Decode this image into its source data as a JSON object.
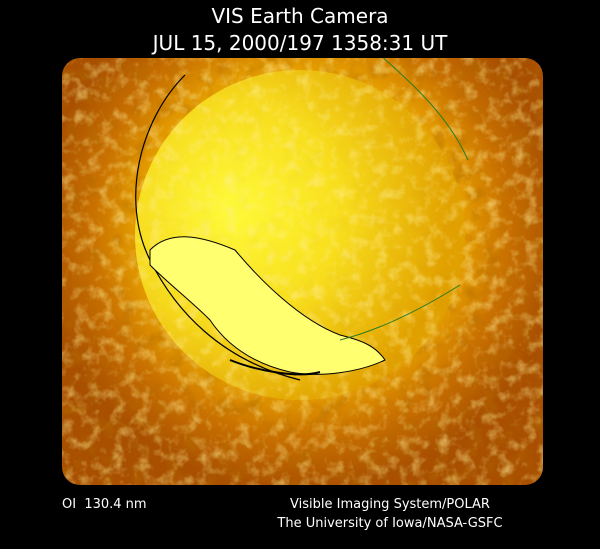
{
  "header": {
    "title": "VIS Earth Camera",
    "timestamp": "JUL 15, 2000/197 1358:31 UT"
  },
  "footer": {
    "filter": "OI  130.4 nm",
    "instrument": "Visible Imaging System/POLAR",
    "institution": "The University of Iowa/NASA-GSFC"
  }
}
